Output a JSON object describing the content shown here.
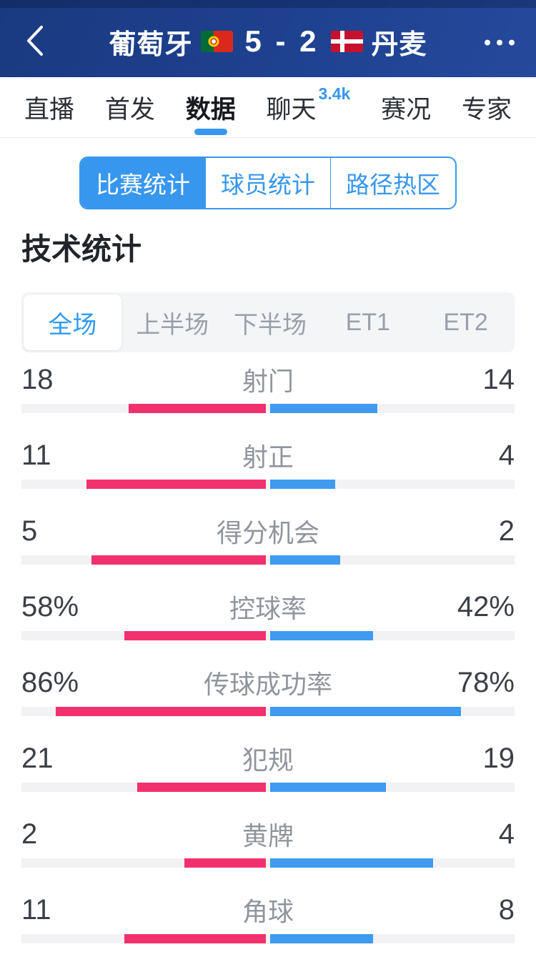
{
  "header": {
    "home_team": "葡萄牙",
    "away_team": "丹麦",
    "score": "5 - 2",
    "home_flag": "portugal-flag",
    "away_flag": "denmark-flag",
    "back_icon": "chevron-left",
    "more_icon": "ellipsis"
  },
  "nav_tabs": [
    {
      "label": "直播",
      "active": false
    },
    {
      "label": "首发",
      "active": false
    },
    {
      "label": "数据",
      "active": true
    },
    {
      "label": "聊天",
      "active": false,
      "badge": "3.4k"
    },
    {
      "label": "赛况",
      "active": false
    },
    {
      "label": "专家",
      "active": false
    }
  ],
  "segment_tabs": [
    {
      "label": "比赛统计",
      "active": true
    },
    {
      "label": "球员统计",
      "active": false
    },
    {
      "label": "路径热区",
      "active": false
    }
  ],
  "section_title": "技术统计",
  "period_tabs": [
    {
      "label": "全场",
      "active": true
    },
    {
      "label": "上半场",
      "active": false
    },
    {
      "label": "下半场",
      "active": false
    },
    {
      "label": "ET1",
      "active": false
    },
    {
      "label": "ET2",
      "active": false
    }
  ],
  "stats": [
    {
      "name": "射门",
      "home": "18",
      "away": "14",
      "percent": false
    },
    {
      "name": "射正",
      "home": "11",
      "away": "4",
      "percent": false
    },
    {
      "name": "得分机会",
      "home": "5",
      "away": "2",
      "percent": false
    },
    {
      "name": "控球率",
      "home": "58%",
      "away": "42%",
      "percent": true
    },
    {
      "name": "传球成功率",
      "home": "86%",
      "away": "78%",
      "percent": true
    },
    {
      "name": "犯规",
      "home": "21",
      "away": "19",
      "percent": false
    },
    {
      "name": "黄牌",
      "home": "2",
      "away": "4",
      "percent": false
    },
    {
      "name": "角球",
      "home": "11",
      "away": "8",
      "percent": false
    }
  ],
  "colors": {
    "accent": "#3797ee",
    "home_bar": "#f1316e",
    "away_bar": "#3f9af0"
  }
}
